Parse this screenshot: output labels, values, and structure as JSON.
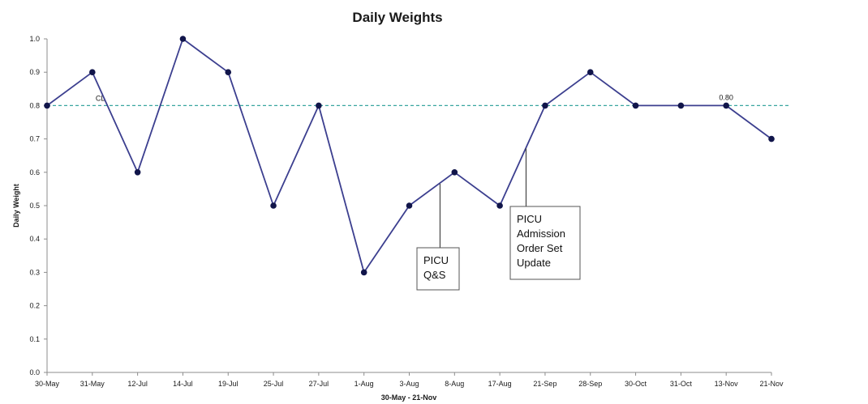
{
  "chart_data": {
    "type": "line",
    "title": "Daily Weights",
    "xlabel": "30-May - 21-Nov",
    "ylabel": "Daily Weight",
    "categories": [
      "30-May",
      "31-May",
      "12-Jul",
      "14-Jul",
      "19-Jul",
      "25-Jul",
      "27-Jul",
      "1-Aug",
      "3-Aug",
      "8-Aug",
      "17-Aug",
      "21-Sep",
      "28-Sep",
      "30-Oct",
      "31-Oct",
      "13-Nov",
      "21-Nov"
    ],
    "series": [
      {
        "values": [
          0.8,
          0.9,
          0.6,
          1.0,
          0.9,
          0.5,
          0.8,
          0.3,
          0.5,
          0.6,
          0.5,
          0.8,
          0.9,
          0.8,
          0.8,
          0.8,
          0.7
        ]
      }
    ],
    "ylim": [
      0.0,
      1.0
    ],
    "yticks": [
      "0.0",
      "0.1",
      "0.2",
      "0.3",
      "0.4",
      "0.5",
      "0.6",
      "0.7",
      "0.8",
      "0.9",
      "1.0"
    ],
    "center_line": {
      "value": 0.8,
      "label": "CL",
      "value_label": "0.80"
    },
    "annotations": [
      {
        "lines": [
          "PICU",
          "Q&S"
        ],
        "pointer_between": [
          "3-Aug",
          "8-Aug"
        ]
      },
      {
        "lines": [
          "PICU",
          "Admission",
          "Order Set",
          "Update"
        ],
        "pointer_between": [
          "17-Aug",
          "21-Sep"
        ]
      }
    ],
    "colors": {
      "line": "#3c3f8f",
      "marker": "#11154a",
      "center_line": "#3aa6a0"
    },
    "grid": false,
    "legend": "none"
  }
}
